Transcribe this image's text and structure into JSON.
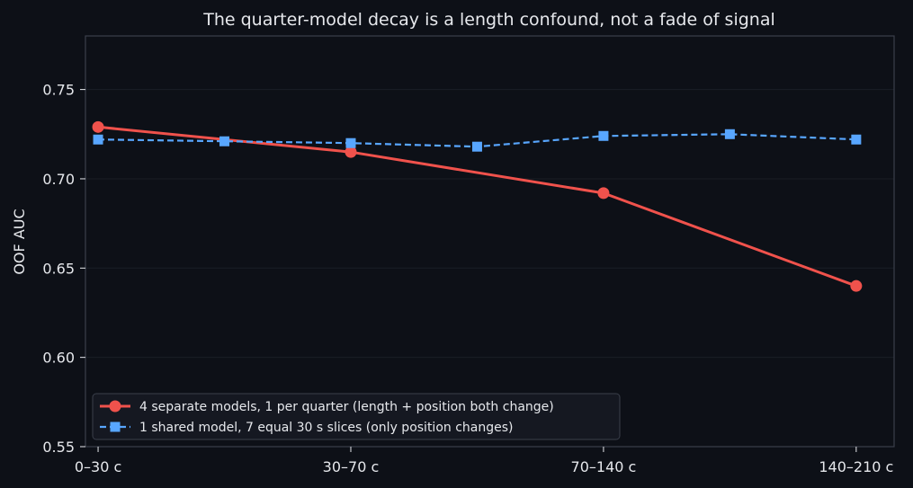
{
  "colors": {
    "background": "#0d1017",
    "plot_background": "#0d1017",
    "axis": "#3a3f4a",
    "grid": "#1a1e26",
    "text": "#e6e8ec",
    "series_separate": "#f0524c",
    "series_shared": "#58a6ff",
    "legend_bg": "#161a22",
    "legend_border": "#3a3f4a"
  },
  "chart_data": {
    "type": "line",
    "title": "The quarter-model decay is a length confound, not a fade of signal",
    "xlabel": "",
    "ylabel": "OOF AUC",
    "xlim": [
      -0.1,
      6.3
    ],
    "ylim": [
      0.55,
      0.78
    ],
    "x_ticks": [
      {
        "x": 0,
        "label": "0–30 c"
      },
      {
        "x": 2,
        "label": "30–70 c"
      },
      {
        "x": 4,
        "label": "70–140 c"
      },
      {
        "x": 6,
        "label": "140–210 c"
      }
    ],
    "y_ticks": [
      0.55,
      0.6,
      0.65,
      0.7,
      0.75
    ],
    "grid": true,
    "legend_position": "lower-left",
    "series": [
      {
        "name": "4 separate models, 1 per quarter (length + position both change)",
        "color_key": "series_separate",
        "marker": "circle",
        "line_style": "solid",
        "x": [
          0,
          2,
          4,
          6
        ],
        "y": [
          0.729,
          0.715,
          0.692,
          0.64
        ]
      },
      {
        "name": "1 shared model, 7 equal 30 s slices (only position changes)",
        "color_key": "series_shared",
        "marker": "square",
        "line_style": "dashed",
        "x": [
          0,
          1,
          2,
          3,
          4,
          5,
          6
        ],
        "y": [
          0.722,
          0.721,
          0.72,
          0.718,
          0.724,
          0.725,
          0.722
        ]
      }
    ]
  }
}
